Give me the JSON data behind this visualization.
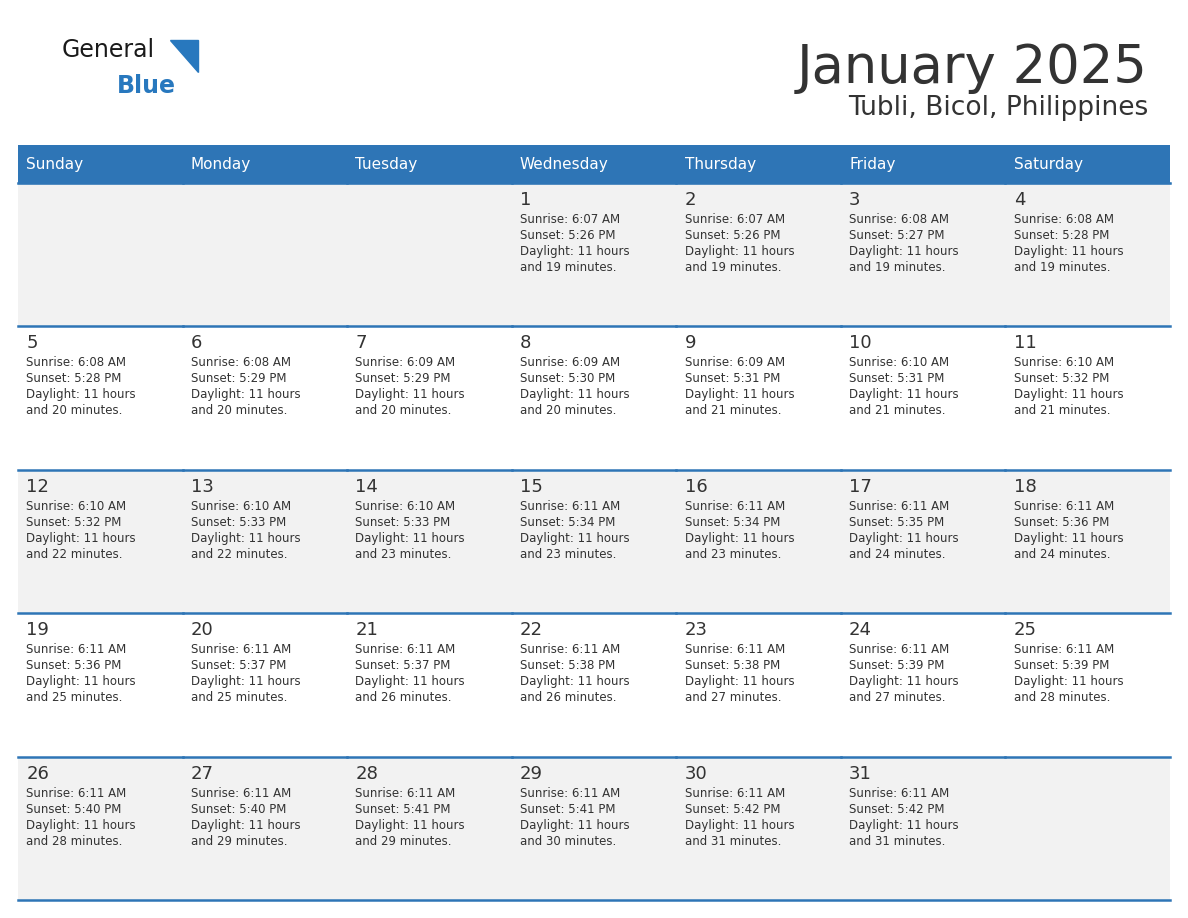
{
  "title": "January 2025",
  "subtitle": "Tubli, Bicol, Philippines",
  "days_of_week": [
    "Sunday",
    "Monday",
    "Tuesday",
    "Wednesday",
    "Thursday",
    "Friday",
    "Saturday"
  ],
  "header_bg": "#2E75B6",
  "header_text": "#FFFFFF",
  "row_bg_odd": "#F2F2F2",
  "row_bg_even": "#FFFFFF",
  "cell_border": "#2E75B6",
  "day_number_color": "#333333",
  "text_color": "#333333",
  "title_color": "#333333",
  "logo_general_color": "#1a1a1a",
  "logo_blue_color": "#2878BE",
  "calendar_data": [
    [
      null,
      null,
      null,
      {
        "day": 1,
        "sunrise": "6:07 AM",
        "sunset": "5:26 PM",
        "daylight": "11 hours\nand 19 minutes."
      },
      {
        "day": 2,
        "sunrise": "6:07 AM",
        "sunset": "5:26 PM",
        "daylight": "11 hours\nand 19 minutes."
      },
      {
        "day": 3,
        "sunrise": "6:08 AM",
        "sunset": "5:27 PM",
        "daylight": "11 hours\nand 19 minutes."
      },
      {
        "day": 4,
        "sunrise": "6:08 AM",
        "sunset": "5:28 PM",
        "daylight": "11 hours\nand 19 minutes."
      }
    ],
    [
      {
        "day": 5,
        "sunrise": "6:08 AM",
        "sunset": "5:28 PM",
        "daylight": "11 hours\nand 20 minutes."
      },
      {
        "day": 6,
        "sunrise": "6:08 AM",
        "sunset": "5:29 PM",
        "daylight": "11 hours\nand 20 minutes."
      },
      {
        "day": 7,
        "sunrise": "6:09 AM",
        "sunset": "5:29 PM",
        "daylight": "11 hours\nand 20 minutes."
      },
      {
        "day": 8,
        "sunrise": "6:09 AM",
        "sunset": "5:30 PM",
        "daylight": "11 hours\nand 20 minutes."
      },
      {
        "day": 9,
        "sunrise": "6:09 AM",
        "sunset": "5:31 PM",
        "daylight": "11 hours\nand 21 minutes."
      },
      {
        "day": 10,
        "sunrise": "6:10 AM",
        "sunset": "5:31 PM",
        "daylight": "11 hours\nand 21 minutes."
      },
      {
        "day": 11,
        "sunrise": "6:10 AM",
        "sunset": "5:32 PM",
        "daylight": "11 hours\nand 21 minutes."
      }
    ],
    [
      {
        "day": 12,
        "sunrise": "6:10 AM",
        "sunset": "5:32 PM",
        "daylight": "11 hours\nand 22 minutes."
      },
      {
        "day": 13,
        "sunrise": "6:10 AM",
        "sunset": "5:33 PM",
        "daylight": "11 hours\nand 22 minutes."
      },
      {
        "day": 14,
        "sunrise": "6:10 AM",
        "sunset": "5:33 PM",
        "daylight": "11 hours\nand 23 minutes."
      },
      {
        "day": 15,
        "sunrise": "6:11 AM",
        "sunset": "5:34 PM",
        "daylight": "11 hours\nand 23 minutes."
      },
      {
        "day": 16,
        "sunrise": "6:11 AM",
        "sunset": "5:34 PM",
        "daylight": "11 hours\nand 23 minutes."
      },
      {
        "day": 17,
        "sunrise": "6:11 AM",
        "sunset": "5:35 PM",
        "daylight": "11 hours\nand 24 minutes."
      },
      {
        "day": 18,
        "sunrise": "6:11 AM",
        "sunset": "5:36 PM",
        "daylight": "11 hours\nand 24 minutes."
      }
    ],
    [
      {
        "day": 19,
        "sunrise": "6:11 AM",
        "sunset": "5:36 PM",
        "daylight": "11 hours\nand 25 minutes."
      },
      {
        "day": 20,
        "sunrise": "6:11 AM",
        "sunset": "5:37 PM",
        "daylight": "11 hours\nand 25 minutes."
      },
      {
        "day": 21,
        "sunrise": "6:11 AM",
        "sunset": "5:37 PM",
        "daylight": "11 hours\nand 26 minutes."
      },
      {
        "day": 22,
        "sunrise": "6:11 AM",
        "sunset": "5:38 PM",
        "daylight": "11 hours\nand 26 minutes."
      },
      {
        "day": 23,
        "sunrise": "6:11 AM",
        "sunset": "5:38 PM",
        "daylight": "11 hours\nand 27 minutes."
      },
      {
        "day": 24,
        "sunrise": "6:11 AM",
        "sunset": "5:39 PM",
        "daylight": "11 hours\nand 27 minutes."
      },
      {
        "day": 25,
        "sunrise": "6:11 AM",
        "sunset": "5:39 PM",
        "daylight": "11 hours\nand 28 minutes."
      }
    ],
    [
      {
        "day": 26,
        "sunrise": "6:11 AM",
        "sunset": "5:40 PM",
        "daylight": "11 hours\nand 28 minutes."
      },
      {
        "day": 27,
        "sunrise": "6:11 AM",
        "sunset": "5:40 PM",
        "daylight": "11 hours\nand 29 minutes."
      },
      {
        "day": 28,
        "sunrise": "6:11 AM",
        "sunset": "5:41 PM",
        "daylight": "11 hours\nand 29 minutes."
      },
      {
        "day": 29,
        "sunrise": "6:11 AM",
        "sunset": "5:41 PM",
        "daylight": "11 hours\nand 30 minutes."
      },
      {
        "day": 30,
        "sunrise": "6:11 AM",
        "sunset": "5:42 PM",
        "daylight": "11 hours\nand 31 minutes."
      },
      {
        "day": 31,
        "sunrise": "6:11 AM",
        "sunset": "5:42 PM",
        "daylight": "11 hours\nand 31 minutes."
      },
      null
    ]
  ]
}
